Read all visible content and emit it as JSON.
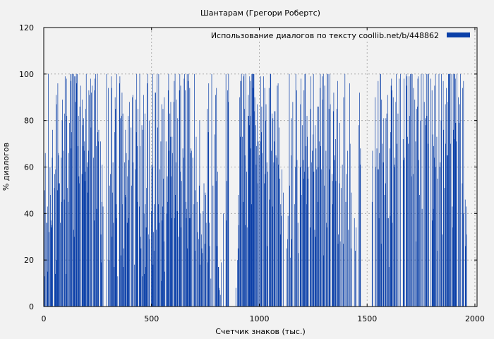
{
  "chart_data": {
    "type": "bar",
    "title": "Шантарам (Грегори Робертс)",
    "xlabel": "Счетчик знаков (тыс.)",
    "ylabel": "% диалогов",
    "xlim": [
      0,
      2010
    ],
    "ylim": [
      0,
      120
    ],
    "x_ticks": [
      "0",
      "500",
      "1000",
      "1500",
      "2000"
    ],
    "y_ticks": [
      "0",
      "20",
      "40",
      "60",
      "80",
      "100",
      "120"
    ],
    "grid": true,
    "legend_position": "top-right",
    "bar_color": "#0a3fa8",
    "x_step": 2,
    "series": [
      {
        "name": "Использование диалогов по тексту  coollib.net/b/448862",
        "x_start": 0,
        "values": [
          7,
          50,
          13,
          66,
          0,
          0,
          36,
          36,
          43,
          15,
          100,
          0,
          32,
          0,
          60,
          48,
          37,
          34,
          35,
          64,
          76,
          0,
          0,
          0,
          51,
          57,
          14,
          59,
          91,
          87,
          20,
          50,
          96,
          66,
          65,
          53,
          53,
          0,
          36,
          0,
          64,
          45,
          80,
          89,
          0,
          67,
          0,
          46,
          83,
          99,
          0,
          14,
          98,
          82,
          51,
          0,
          45,
          66,
          0,
          79,
          0,
          100,
          97,
          68,
          75,
          100,
          0,
          100,
          100,
          33,
          30,
          99,
          88,
          0,
          99,
          100,
          96,
          100,
          0,
          69,
          82,
          56,
          53,
          86,
          0,
          95,
          0,
          0,
          57,
          89,
          78,
          69,
          81,
          67,
          71,
          54,
          58,
          85,
          100,
          0,
          60,
          62,
          49,
          67,
          93,
          91,
          0,
          0,
          98,
          77,
          92,
          0,
          95,
          0,
          0,
          64,
          37,
          93,
          98,
          0,
          100,
          69,
          42,
          0,
          100,
          75,
          71,
          76,
          0,
          0,
          0,
          71,
          31,
          19,
          45,
          61,
          0,
          43,
          0,
          0,
          0,
          0,
          0,
          0,
          0,
          100,
          0,
          0,
          0,
          94,
          0,
          20,
          52,
          0,
          57,
          0,
          99,
          94,
          30,
          49,
          62,
          36,
          0,
          17,
          75,
          90,
          85,
          44,
          38,
          100,
          0,
          13,
          0,
          0,
          0,
          96,
          99,
          81,
          22,
          0,
          82,
          92,
          44,
          83,
          17,
          25,
          0,
          62,
          48,
          76,
          47,
          66,
          0,
          36,
          56,
          82,
          38,
          63,
          88,
          0,
          0,
          0,
          77,
          52,
          0,
          90,
          91,
          62,
          0,
          0,
          18,
          0,
          59,
          89,
          75,
          100,
          69,
          45,
          85,
          0,
          0,
          43,
          100,
          69,
          30,
          25,
          0,
          78,
          13,
          76,
          0,
          91,
          40,
          14,
          83,
          44,
          17,
          34,
          51,
          96,
          0,
          100,
          31,
          0,
          80,
          29,
          0,
          0,
          0,
          41,
          61,
          60,
          100,
          18,
          32,
          24,
          44,
          0,
          92,
          92,
          0,
          33,
          100,
          0,
          77,
          44,
          100,
          36,
          0,
          59,
          0,
          71,
          11,
          87,
          37,
          43,
          85,
          55,
          28,
          90,
          15,
          0,
          0,
          71,
          0,
          40,
          56,
          45,
          93,
          100,
          67,
          0,
          83,
          73,
          88,
          56,
          38,
          73,
          66,
          0,
          0,
          88,
          97,
          38,
          100,
          48,
          62,
          89,
          0,
          41,
          81,
          0,
          30,
          0,
          93,
          100,
          58,
          95,
          34,
          54,
          0,
          0,
          68,
          0,
          64,
          98,
          100,
          0,
          93,
          45,
          38,
          42,
          100,
          25,
          97,
          0,
          100,
          38,
          94,
          38,
          66,
          68,
          67,
          0,
          0,
          64,
          0,
          0,
          44,
          100,
          24,
          50,
          0,
          73,
          0,
          45,
          32,
          0,
          0,
          29,
          52,
          80,
          18,
          0,
          40,
          31,
          25,
          0,
          23,
          41,
          0,
          53,
          0,
          27,
          49,
          48,
          36,
          0,
          0,
          85,
          19,
          75,
          96,
          36,
          26,
          0,
          0,
          12,
          0,
          100,
          0,
          0,
          52,
          0,
          0,
          0,
          74,
          0,
          91,
          54,
          94,
          26,
          0,
          58,
          17,
          17,
          8,
          7,
          0,
          5,
          0,
          19,
          0,
          0,
          0,
          0,
          40,
          0,
          0,
          0,
          0,
          0,
          100,
          37,
          54,
          0,
          93,
          88,
          100,
          0,
          0,
          0,
          0,
          0,
          0,
          0,
          0,
          0,
          0,
          0,
          0,
          0,
          0,
          0,
          0,
          8,
          0,
          0,
          0,
          20,
          25,
          48,
          35,
          0,
          90,
          73,
          97,
          97,
          100,
          0,
          73,
          0,
          45,
          99,
          100,
          85,
          65,
          35,
          100,
          0,
          58,
          34,
          0,
          82,
          91,
          82,
          78,
          99,
          82,
          97,
          68,
          44,
          100,
          100,
          100,
          94,
          100,
          100,
          84,
          90,
          0,
          78,
          61,
          69,
          0,
          87,
          53,
          71,
          0,
          65,
          0,
          71,
          0,
          99,
          75,
          86,
          66,
          0,
          0,
          99,
          0,
          53,
          94,
          57,
          80,
          87,
          0,
          62,
          26,
          58,
          0,
          0,
          94,
          46,
          0,
          100,
          100,
          67,
          0,
          83,
          43,
          81,
          0,
          62,
          71,
          84,
          84,
          0,
          65,
          0,
          64,
          95,
          0,
          96,
          61,
          77,
          0,
          55,
          31,
          44,
          39,
          0,
          59,
          0,
          0,
          49,
          0,
          0,
          0,
          0,
          0,
          0,
          0,
          25,
          0,
          29,
          39,
          0,
          0,
          100,
          52,
          21,
          0,
          65,
          81,
          29,
          0,
          88,
          0,
          0,
          0,
          44,
          0,
          60,
          100,
          0,
          93,
          63,
          0,
          36,
          23,
          0,
          0,
          0,
          60,
          87,
          98,
          48,
          0,
          78,
          0,
          63,
          55,
          93,
          58,
          100,
          100,
          0,
          69,
          44,
          82,
          73,
          55,
          60,
          0,
          0,
          0,
          34,
          85,
          99,
          0,
          62,
          67,
          0,
          74,
          100,
          58,
          0,
          33,
          78,
          30,
          68,
          59,
          0,
          86,
          45,
          60,
          86,
          71,
          0,
          94,
          100,
          69,
          59,
          0,
          0,
          99,
          89,
          100,
          22,
          52,
          95,
          0,
          0,
          67,
          36,
          34,
          100,
          0,
          100,
          0,
          85,
          59,
          100,
          87,
          0,
          0,
          0,
          57,
          54,
          44,
          84,
          92,
          0,
          63,
          65,
          72,
          54,
          0,
          85,
          0,
          97,
          27,
          31,
          0,
          53,
          79,
          28,
          0,
          51,
          0,
          0,
          61,
          0,
          27,
          90,
          0,
          0,
          100,
          0,
          45,
          0,
          57,
          0,
          67,
          0,
          33,
          0,
          0,
          96,
          70,
          0,
          25,
          49,
          0,
          0,
          0,
          0,
          0,
          0,
          38,
          0,
          24,
          0,
          34,
          0,
          0,
          0,
          0,
          0,
          78,
          0,
          92,
          61,
          68,
          0,
          0,
          0,
          0,
          0,
          0,
          0,
          0,
          0,
          0,
          0,
          0,
          0,
          0,
          0,
          0,
          0,
          0,
          0,
          0,
          0,
          0,
          0,
          0,
          0,
          0,
          45,
          67,
          0,
          0,
          0,
          0,
          0,
          90,
          60,
          0,
          0,
          68,
          0,
          59,
          97,
          59,
          38,
          66,
          0,
          100,
          100,
          27,
          89,
          0,
          70,
          0,
          62,
          81,
          0,
          48,
          0,
          53,
          81,
          0,
          83,
          38,
          91,
          0,
          38,
          17,
          0,
          68,
          39,
          75,
          95,
          98,
          93,
          36,
          0,
          90,
          0,
          61,
          60,
          64,
          0,
          88,
          100,
          0,
          70,
          0,
          83,
          0,
          0,
          98,
          0,
          0,
          100,
          0,
          0,
          0,
          0,
          0,
          72,
          63,
          98,
          64,
          0,
          0,
          0,
          100,
          95,
          99,
          73,
          0,
          70,
          0,
          99,
          82,
          0,
          100,
          0,
          100,
          56,
          100,
          0,
          57,
          94,
          0,
          0,
          89,
          0,
          71,
          28,
          85,
          0,
          86,
          98,
          99,
          63,
          0,
          48,
          0,
          80,
          0,
          100,
          0,
          42,
          0,
          100,
          0,
          0,
          88,
          0,
          81,
          0,
          78,
          100,
          82,
          0,
          100,
          70,
          100,
          0,
          0,
          0,
          0,
          98,
          0,
          0,
          93,
          37,
          74,
          42,
          69,
          64,
          95,
          0,
          100,
          60,
          0,
          73,
          24,
          55,
          0,
          0,
          100,
          0,
          60,
          62,
          0,
          80,
          100,
          0,
          31,
          0,
          97,
          76,
          0,
          51,
          0,
          87,
          70,
          94,
          0,
          65,
          65,
          88,
          100,
          100,
          100,
          100,
          0,
          70,
          100,
          0,
          0,
          43,
          34,
          100,
          76,
          100,
          72,
          100,
          98,
          79,
          71,
          0,
          100,
          0,
          0,
          90,
          0,
          79,
          87,
          0,
          100,
          0,
          0,
          0,
          53,
          94,
          40,
          97,
          0,
          0,
          0,
          46,
          26,
          43,
          31
        ]
      }
    ]
  }
}
